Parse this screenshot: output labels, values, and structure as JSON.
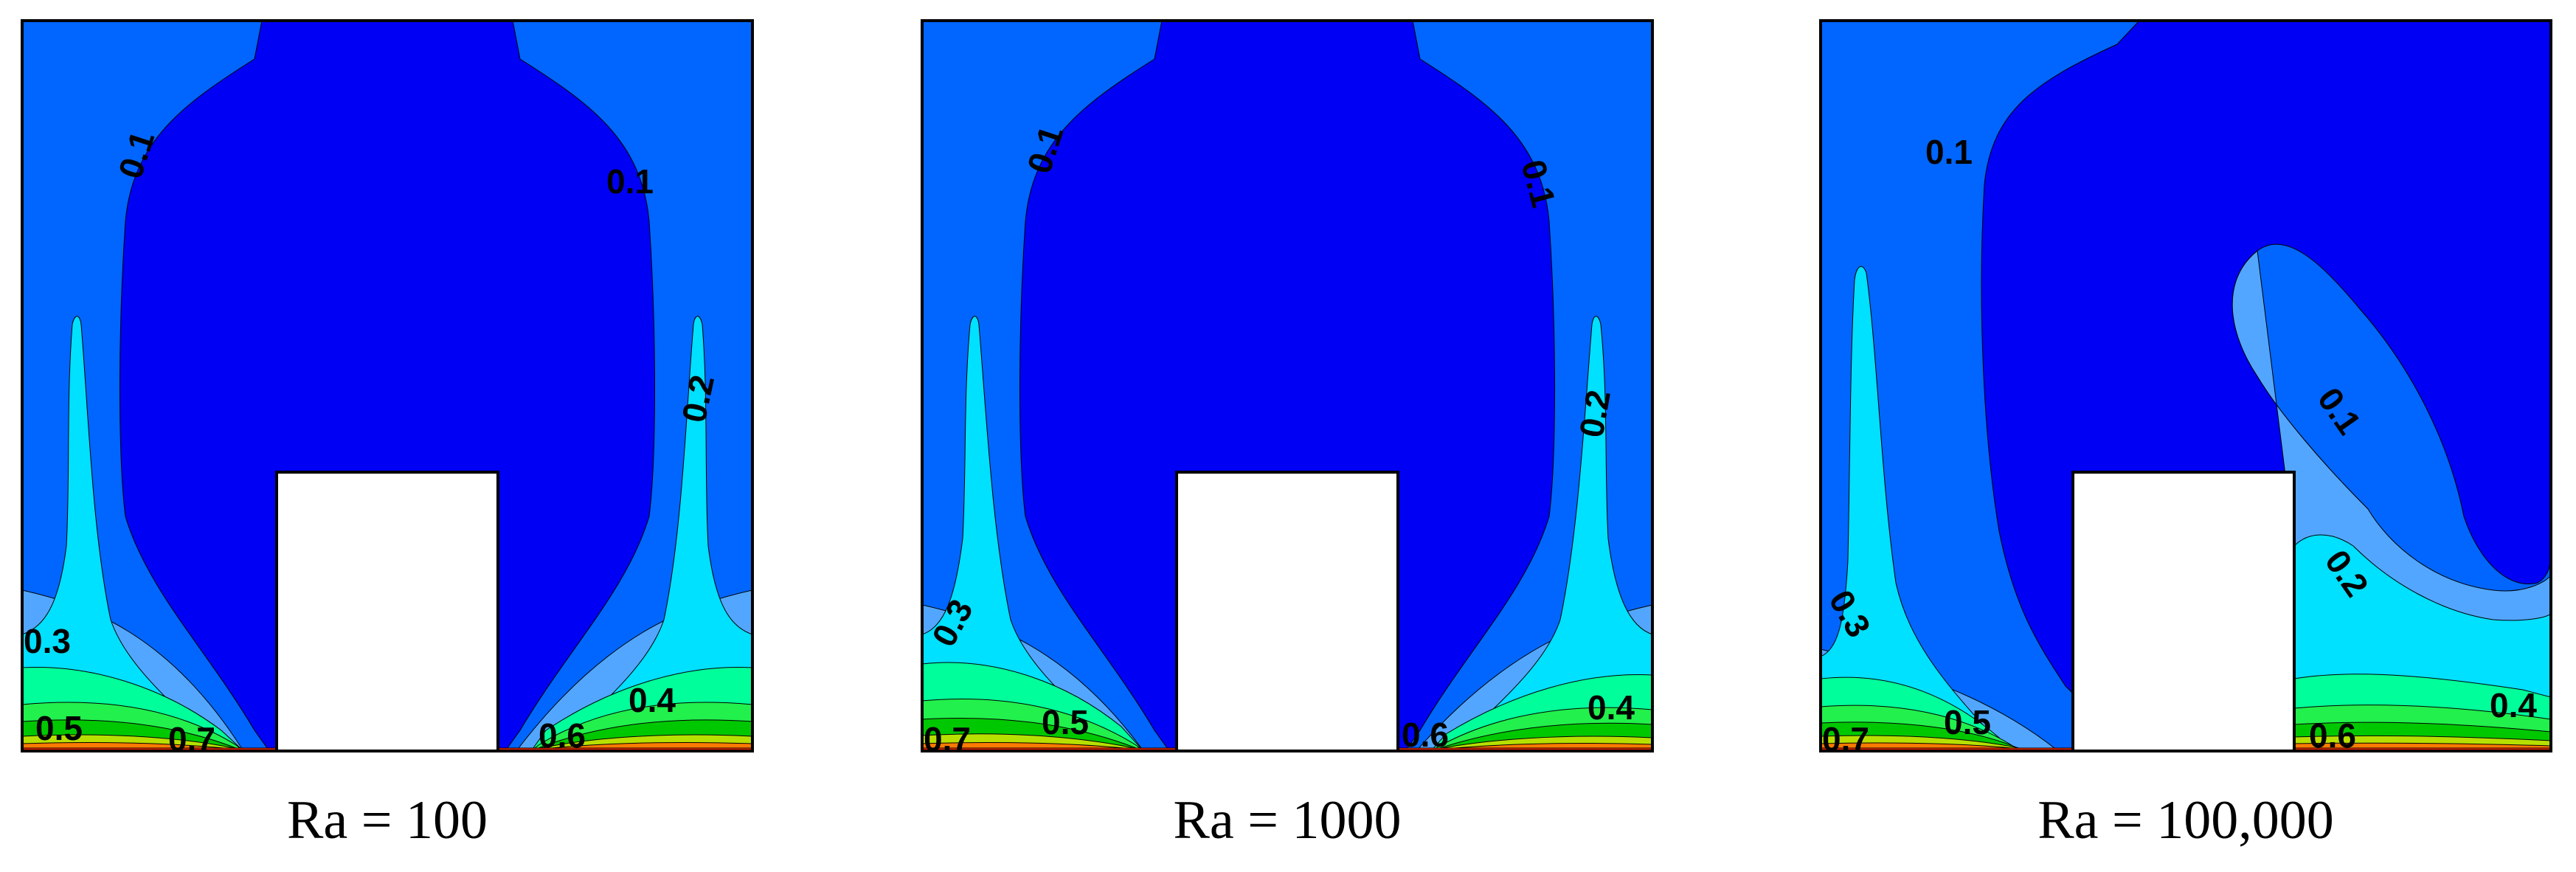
{
  "colors": {
    "level_0_0": "#0000f5",
    "level_0_1": "#0066ff",
    "level_0_2": "#52a6ff",
    "level_0_3": "#00e0ff",
    "level_0_4": "#00ff9a",
    "level_0_5": "#22f04c",
    "level_0_6": "#00c800",
    "level_0_7": "#b7e000",
    "level_0_8": "#ff7a00",
    "level_0_9": "#ff2a00",
    "obstacle": "#ffffff",
    "frame": "#000000"
  },
  "panels": [
    {
      "caption": "Ra = 100",
      "labels": [
        "0.1",
        "0.1",
        "0.2",
        "0.3",
        "0.4",
        "0.5",
        "0.6",
        "0.7"
      ]
    },
    {
      "caption": "Ra = 1000",
      "labels": [
        "0.1",
        "0.1",
        "0.2",
        "0.3",
        "0.4",
        "0.5",
        "0.6",
        "0.7"
      ]
    },
    {
      "caption": "Ra = 100,000",
      "labels": [
        "0.1",
        "0.1",
        "0.2",
        "0.3",
        "0.4",
        "0.5",
        "0.6",
        "0.7"
      ]
    }
  ]
}
